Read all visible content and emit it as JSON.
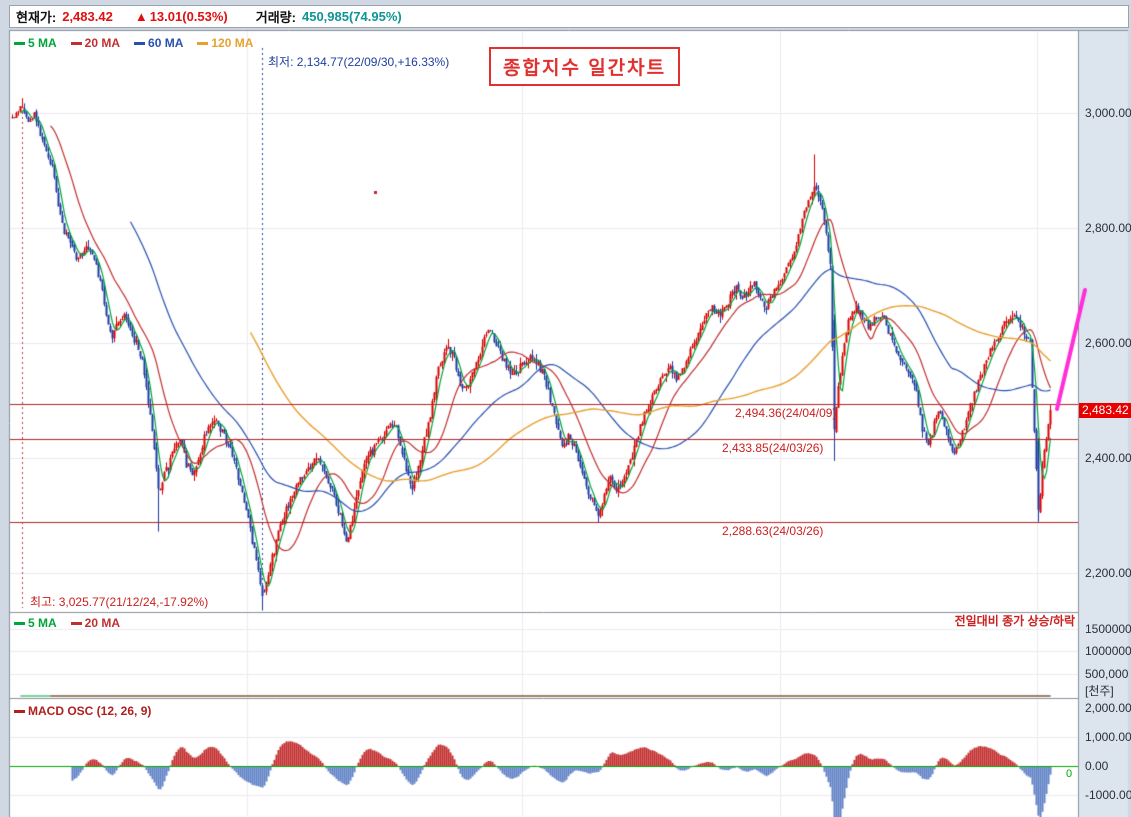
{
  "header": {
    "price_label": "현재가:",
    "price": "2,483.42",
    "change_arrow": "▲",
    "change": "13.01(0.53%)",
    "volume_label": "거래량:",
    "volume": "450,985(74.95%)"
  },
  "colors": {
    "up": "#d80000",
    "down": "#1d3aa2",
    "ma5": "#00a53c",
    "ma20": "#c03030",
    "ma60": "#2850b0",
    "ma120": "#e8a030",
    "macd_pos": "#c43030",
    "macd_neg": "#6284c8",
    "zero_line": "#00a800",
    "level_line": "#b42424",
    "level_text": "#cc2020",
    "badge_bg": "#e80000",
    "accent_magenta": "#ff2ed8",
    "volume_value_text": "#0f9494",
    "change_red": "#e01010",
    "annotation_low_text": "#2040a0",
    "annotation_high_text": "#cc2020",
    "pane_bg": "#ffffff",
    "axis_bg": "#dce4ee",
    "frame": "#cfd8e3",
    "separator": "#8a919b",
    "grid": "#ececf1"
  },
  "main_legend": [
    {
      "label": "5 MA",
      "color": "#00a53c"
    },
    {
      "label": "20 MA",
      "color": "#c03030"
    },
    {
      "label": "60 MA",
      "color": "#2850b0"
    },
    {
      "label": "120 MA",
      "color": "#e8a030"
    }
  ],
  "annotations": {
    "low": "최저: 2,134.77(22/09/30,+16.33%)",
    "high": "최고: 3,025.77(21/12/24,-17.92%)",
    "title": "종합지수 일간차트",
    "volume_note": "전일대비 종가 상승/하락"
  },
  "levels": [
    {
      "label": "2,494.36(24/04/09)",
      "price": 2494.36
    },
    {
      "label": "2,433.85(24/03/26)",
      "price": 2433.85
    },
    {
      "label": "2,288.63(24/03/26)",
      "price": 2288.63
    }
  ],
  "price_badge": "2,483.42",
  "price_axis": {
    "labels": [
      "3,000.00",
      "2,800.00",
      "2,600.00",
      "2,400.00",
      "2,200.00"
    ],
    "values": [
      3000,
      2800,
      2600,
      2400,
      2200
    ]
  },
  "volume_pane": {
    "legend": [
      {
        "label": "5 MA",
        "color": "#00a53c"
      },
      {
        "label": "20 MA",
        "color": "#c03030"
      }
    ],
    "axis_labels": [
      "1500000",
      "1000000",
      "500,000"
    ],
    "axis_values": [
      1500000,
      1000000,
      500000
    ],
    "unit": "[천주]"
  },
  "macd_pane": {
    "legend": "MACD OSC (12, 26, 9)",
    "axis_labels": [
      "2,000.00",
      "1,000.00",
      "0.00",
      "-1000.00"
    ],
    "axis_values": [
      2000,
      1000,
      0,
      -1000
    ],
    "zero_label": "0"
  },
  "chart_data": {
    "type": "candlestick",
    "title": "종합지수 일간차트",
    "current_price": 2483.42,
    "change": 13.01,
    "change_pct": 0.53,
    "volume_display": "450,985(74.95%)",
    "high_event": {
      "price": 3025.77,
      "date": "21/12/24",
      "pct": -17.92,
      "x": 22
    },
    "low_event": {
      "price": 2134.77,
      "date": "22/09/30",
      "pct": 16.33,
      "x": 262
    },
    "support_resistance": [
      2494.36,
      2433.85,
      2288.63
    ],
    "y_axis_range": [
      2139,
      3144
    ],
    "y_ticks": [
      3000,
      2800,
      2600,
      2400,
      2200
    ],
    "x_axis_labels": "none visible",
    "indicators": {
      "price_ma": [
        5,
        20,
        60,
        120
      ],
      "volume_ma": [
        5,
        20
      ],
      "macd_osc": [
        12,
        26,
        9
      ]
    },
    "close_path": [
      [
        12,
        2995
      ],
      [
        18,
        3005
      ],
      [
        22,
        3012
      ],
      [
        28,
        2985
      ],
      [
        34,
        2995
      ],
      [
        40,
        2965
      ],
      [
        46,
        2940
      ],
      [
        52,
        2905
      ],
      [
        58,
        2840
      ],
      [
        64,
        2795
      ],
      [
        70,
        2770
      ],
      [
        76,
        2745
      ],
      [
        82,
        2755
      ],
      [
        88,
        2765
      ],
      [
        94,
        2745
      ],
      [
        100,
        2705
      ],
      [
        106,
        2650
      ],
      [
        112,
        2610
      ],
      [
        118,
        2635
      ],
      [
        124,
        2650
      ],
      [
        130,
        2620
      ],
      [
        136,
        2600
      ],
      [
        142,
        2565
      ],
      [
        148,
        2495
      ],
      [
        153,
        2440
      ],
      [
        158,
        2340
      ],
      [
        163,
        2370
      ],
      [
        168,
        2385
      ],
      [
        174,
        2420
      ],
      [
        180,
        2435
      ],
      [
        186,
        2390
      ],
      [
        192,
        2375
      ],
      [
        198,
        2400
      ],
      [
        204,
        2435
      ],
      [
        210,
        2455
      ],
      [
        216,
        2465
      ],
      [
        222,
        2445
      ],
      [
        228,
        2420
      ],
      [
        234,
        2395
      ],
      [
        240,
        2355
      ],
      [
        246,
        2315
      ],
      [
        252,
        2255
      ],
      [
        258,
        2205
      ],
      [
        263,
        2160
      ],
      [
        268,
        2200
      ],
      [
        274,
        2240
      ],
      [
        280,
        2290
      ],
      [
        286,
        2310
      ],
      [
        292,
        2330
      ],
      [
        298,
        2355
      ],
      [
        304,
        2370
      ],
      [
        310,
        2385
      ],
      [
        316,
        2400
      ],
      [
        322,
        2385
      ],
      [
        328,
        2360
      ],
      [
        334,
        2330
      ],
      [
        340,
        2300
      ],
      [
        346,
        2250
      ],
      [
        352,
        2295
      ],
      [
        358,
        2350
      ],
      [
        364,
        2385
      ],
      [
        370,
        2410
      ],
      [
        376,
        2420
      ],
      [
        382,
        2435
      ],
      [
        388,
        2450
      ],
      [
        394,
        2460
      ],
      [
        400,
        2425
      ],
      [
        406,
        2380
      ],
      [
        412,
        2340
      ],
      [
        418,
        2380
      ],
      [
        424,
        2430
      ],
      [
        430,
        2475
      ],
      [
        436,
        2540
      ],
      [
        442,
        2575
      ],
      [
        448,
        2595
      ],
      [
        454,
        2570
      ],
      [
        460,
        2525
      ],
      [
        466,
        2520
      ],
      [
        472,
        2545
      ],
      [
        478,
        2570
      ],
      [
        484,
        2610
      ],
      [
        490,
        2620
      ],
      [
        496,
        2600
      ],
      [
        502,
        2575
      ],
      [
        508,
        2555
      ],
      [
        514,
        2548
      ],
      [
        520,
        2558
      ],
      [
        526,
        2565
      ],
      [
        532,
        2575
      ],
      [
        538,
        2560
      ],
      [
        544,
        2545
      ],
      [
        550,
        2500
      ],
      [
        556,
        2460
      ],
      [
        562,
        2420
      ],
      [
        568,
        2435
      ],
      [
        574,
        2420
      ],
      [
        580,
        2390
      ],
      [
        586,
        2350
      ],
      [
        592,
        2325
      ],
      [
        598,
        2295
      ],
      [
        604,
        2340
      ],
      [
        610,
        2365
      ],
      [
        616,
        2340
      ],
      [
        622,
        2355
      ],
      [
        628,
        2385
      ],
      [
        634,
        2415
      ],
      [
        640,
        2455
      ],
      [
        646,
        2485
      ],
      [
        652,
        2505
      ],
      [
        658,
        2525
      ],
      [
        664,
        2545
      ],
      [
        670,
        2555
      ],
      [
        676,
        2540
      ],
      [
        682,
        2550
      ],
      [
        688,
        2575
      ],
      [
        694,
        2600
      ],
      [
        700,
        2630
      ],
      [
        706,
        2650
      ],
      [
        712,
        2665
      ],
      [
        718,
        2650
      ],
      [
        724,
        2660
      ],
      [
        730,
        2680
      ],
      [
        736,
        2695
      ],
      [
        742,
        2680
      ],
      [
        748,
        2690
      ],
      [
        754,
        2700
      ],
      [
        760,
        2680
      ],
      [
        766,
        2660
      ],
      [
        772,
        2685
      ],
      [
        778,
        2700
      ],
      [
        784,
        2720
      ],
      [
        790,
        2740
      ],
      [
        796,
        2770
      ],
      [
        802,
        2810
      ],
      [
        808,
        2850
      ],
      [
        814,
        2875
      ],
      [
        818,
        2860
      ],
      [
        822,
        2830
      ],
      [
        826,
        2790
      ],
      [
        830,
        2740
      ],
      [
        834,
        2450
      ],
      [
        838,
        2520
      ],
      [
        842,
        2580
      ],
      [
        846,
        2620
      ],
      [
        850,
        2650
      ],
      [
        856,
        2660
      ],
      [
        862,
        2645
      ],
      [
        868,
        2630
      ],
      [
        874,
        2640
      ],
      [
        880,
        2650
      ],
      [
        886,
        2630
      ],
      [
        892,
        2600
      ],
      [
        898,
        2575
      ],
      [
        904,
        2560
      ],
      [
        910,
        2545
      ],
      [
        916,
        2510
      ],
      [
        922,
        2450
      ],
      [
        928,
        2420
      ],
      [
        934,
        2460
      ],
      [
        940,
        2480
      ],
      [
        946,
        2445
      ],
      [
        952,
        2410
      ],
      [
        958,
        2420
      ],
      [
        964,
        2455
      ],
      [
        970,
        2490
      ],
      [
        976,
        2520
      ],
      [
        982,
        2550
      ],
      [
        988,
        2580
      ],
      [
        994,
        2600
      ],
      [
        1000,
        2615
      ],
      [
        1006,
        2640
      ],
      [
        1012,
        2650
      ],
      [
        1018,
        2635
      ],
      [
        1024,
        2620
      ],
      [
        1030,
        2600
      ],
      [
        1034,
        2450
      ],
      [
        1038,
        2300
      ],
      [
        1042,
        2380
      ],
      [
        1046,
        2440
      ],
      [
        1050,
        2483.42
      ]
    ],
    "volume_path_thousands": [
      [
        12,
        420
      ],
      [
        40,
        480
      ],
      [
        60,
        520
      ],
      [
        80,
        560
      ],
      [
        95,
        750
      ],
      [
        105,
        900
      ],
      [
        113,
        1100
      ],
      [
        120,
        800
      ],
      [
        130,
        700
      ],
      [
        145,
        600
      ],
      [
        160,
        520
      ],
      [
        180,
        480
      ],
      [
        200,
        500
      ],
      [
        220,
        470
      ],
      [
        240,
        450
      ],
      [
        262,
        520
      ],
      [
        280,
        460
      ],
      [
        300,
        430
      ],
      [
        330,
        420
      ],
      [
        360,
        450
      ],
      [
        390,
        430
      ],
      [
        420,
        480
      ],
      [
        435,
        650
      ],
      [
        450,
        600
      ],
      [
        465,
        520
      ],
      [
        480,
        500
      ],
      [
        500,
        450
      ],
      [
        520,
        430
      ],
      [
        545,
        420
      ],
      [
        570,
        430
      ],
      [
        598,
        470
      ],
      [
        620,
        440
      ],
      [
        645,
        430
      ],
      [
        670,
        450
      ],
      [
        700,
        460
      ],
      [
        720,
        480
      ],
      [
        745,
        520
      ],
      [
        770,
        500
      ],
      [
        790,
        520
      ],
      [
        815,
        560
      ],
      [
        834,
        900
      ],
      [
        850,
        560
      ],
      [
        870,
        480
      ],
      [
        890,
        460
      ],
      [
        910,
        450
      ],
      [
        930,
        470
      ],
      [
        950,
        460
      ],
      [
        970,
        450
      ],
      [
        990,
        480
      ],
      [
        1010,
        520
      ],
      [
        1025,
        560
      ],
      [
        1032,
        900
      ],
      [
        1040,
        1000
      ],
      [
        1046,
        700
      ],
      [
        1050,
        450
      ]
    ]
  }
}
